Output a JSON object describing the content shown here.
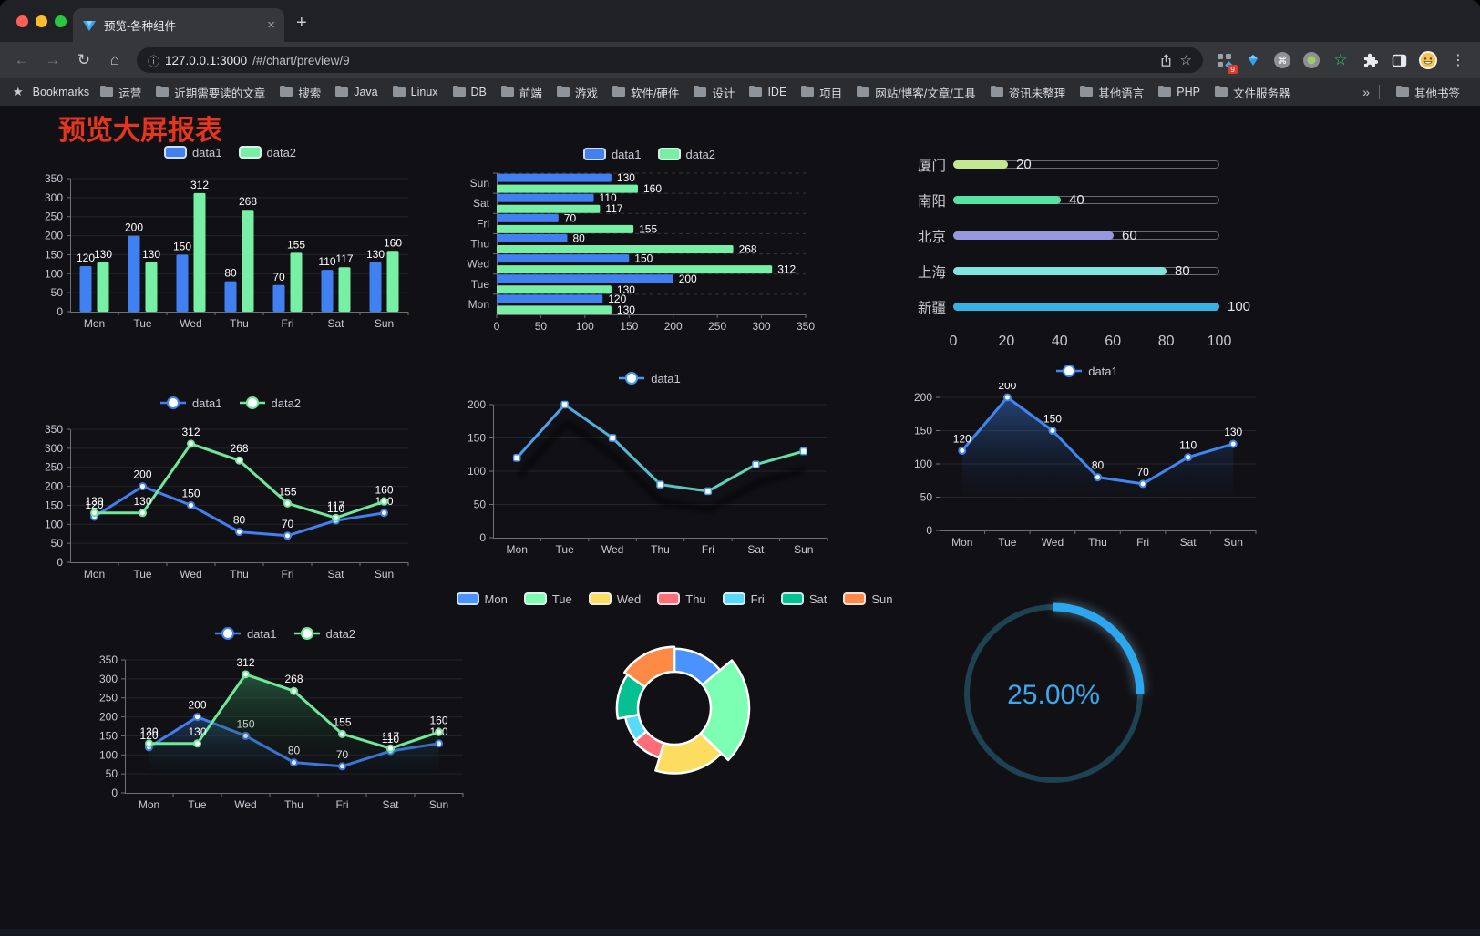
{
  "browser": {
    "tab": {
      "title": "预览-各种组件"
    },
    "address": {
      "url_host": "127.0.0.1:3000",
      "url_path": "/#/chart/preview/9",
      "badge_count": "9"
    },
    "toolbar_icons": [
      "back",
      "forward",
      "reload",
      "home",
      "info",
      "share",
      "bookmark-star",
      "extension-grid",
      "vue-devtools-gem",
      "command-circle",
      "proxy-circle",
      "green-star",
      "extensions-puzzle",
      "sidebar",
      "profile-avatar",
      "menu"
    ],
    "bookmarks": {
      "label": "Bookmarks",
      "folders": [
        "运营",
        "近期需要读的文章",
        "搜索",
        "Java",
        "Linux",
        "DB",
        "前端",
        "游戏",
        "软件/硬件",
        "设计",
        "IDE",
        "项目",
        "网站/博客/文章/工具",
        "资讯未整理",
        "其他语言",
        "PHP",
        "文件服务器"
      ],
      "other_label": "其他书签"
    }
  },
  "icons": {
    "back": "←",
    "forward": "→",
    "reload": "↻",
    "home": "⌂",
    "info": "ⓘ",
    "star": "☆",
    "green_star": "☆",
    "menu": "⋮",
    "overflow": "»",
    "close": "×",
    "plus": "+",
    "cmd": "⌘",
    "bookmarks_star": "★"
  },
  "page": {
    "title": "预览大屏报表",
    "title_color": "#e7351d"
  },
  "chart_data": [
    {
      "id": "barV",
      "type": "bar",
      "legend_pos": "top",
      "categories": [
        "Mon",
        "Tue",
        "Wed",
        "Thu",
        "Fri",
        "Sat",
        "Sun"
      ],
      "series": [
        {
          "name": "data1",
          "color": "#4180f0",
          "values": [
            120,
            200,
            150,
            80,
            70,
            110,
            130
          ]
        },
        {
          "name": "data2",
          "color": "#77f0a6",
          "values": [
            130,
            130,
            312,
            268,
            155,
            117,
            160
          ]
        }
      ],
      "ylim": [
        0,
        350
      ],
      "ytick": 50,
      "value_labels": true,
      "grid": true
    },
    {
      "id": "barH",
      "type": "bar-h",
      "legend_pos": "top",
      "categories": [
        "Mon",
        "Tue",
        "Wed",
        "Thu",
        "Fri",
        "Sat",
        "Sun"
      ],
      "series": [
        {
          "name": "data1",
          "color": "#4180f0",
          "values": [
            120,
            200,
            150,
            80,
            70,
            110,
            130
          ]
        },
        {
          "name": "data2",
          "color": "#77f0a6",
          "values": [
            130,
            130,
            312,
            268,
            155,
            117,
            160
          ]
        }
      ],
      "xlim": [
        0,
        350
      ],
      "xtick": 50,
      "value_labels": true
    },
    {
      "id": "progress",
      "type": "progress",
      "rows": [
        {
          "label": "厦门",
          "value": 20,
          "color": "#c3e88d"
        },
        {
          "label": "南阳",
          "value": 40,
          "color": "#56e2a3"
        },
        {
          "label": "北京",
          "value": 60,
          "color": "#9598de"
        },
        {
          "label": "上海",
          "value": 80,
          "color": "#82e4e0"
        },
        {
          "label": "新疆",
          "value": 100,
          "color": "#38b2e3"
        }
      ],
      "xlim": [
        0,
        100
      ],
      "xticks": [
        0,
        20,
        40,
        60,
        80,
        100
      ]
    },
    {
      "id": "lineDouble",
      "type": "line",
      "legend_pos": "top",
      "categories": [
        "Mon",
        "Tue",
        "Wed",
        "Thu",
        "Fri",
        "Sat",
        "Sun"
      ],
      "series": [
        {
          "name": "data1",
          "color": "#4180f0",
          "values": [
            120,
            200,
            150,
            80,
            70,
            110,
            130
          ]
        },
        {
          "name": "data2",
          "color": "#6fe89a",
          "values": [
            130,
            130,
            312,
            268,
            155,
            117,
            160
          ]
        }
      ],
      "ylim": [
        0,
        350
      ],
      "ytick": 50,
      "value_labels": true,
      "marker": "circle"
    },
    {
      "id": "lineGradient",
      "type": "line",
      "legend_pos": "top",
      "categories": [
        "Mon",
        "Tue",
        "Wed",
        "Thu",
        "Fri",
        "Sat",
        "Sun"
      ],
      "series": [
        {
          "name": "data1",
          "color": "#4a9af0",
          "values": [
            120,
            200,
            150,
            80,
            70,
            110,
            130
          ]
        }
      ],
      "gradient": [
        "#4a9af0",
        "#66e6a2"
      ],
      "shadow": true,
      "ylim": [
        0,
        200
      ],
      "ytick": 50,
      "value_labels": false,
      "marker": "rect"
    },
    {
      "id": "areaSingle",
      "type": "line",
      "legend_pos": "top",
      "area": true,
      "categories": [
        "Mon",
        "Tue",
        "Wed",
        "Thu",
        "Fri",
        "Sat",
        "Sun"
      ],
      "series": [
        {
          "name": "data1",
          "color": "#3f86f0",
          "fill": "rgba(62,134,240,0.45)",
          "values": [
            120,
            200,
            150,
            80,
            70,
            110,
            130
          ]
        }
      ],
      "ylim": [
        0,
        200
      ],
      "ytick": 50,
      "value_labels": true,
      "marker": "circle"
    },
    {
      "id": "areaDouble",
      "type": "line",
      "legend_pos": "top",
      "area": true,
      "categories": [
        "Mon",
        "Tue",
        "Wed",
        "Thu",
        "Fri",
        "Sat",
        "Sun"
      ],
      "series": [
        {
          "name": "data1",
          "color": "#4180f0",
          "fill": "rgba(50,100,170,0.45)",
          "values": [
            120,
            200,
            150,
            80,
            70,
            110,
            130
          ]
        },
        {
          "name": "data2",
          "color": "#6fe89a",
          "fill": "rgba(55,150,95,0.50)",
          "values": [
            130,
            130,
            312,
            268,
            155,
            117,
            160
          ]
        }
      ],
      "ylim": [
        0,
        350
      ],
      "ytick": 50,
      "value_labels": true,
      "marker": "circle"
    },
    {
      "id": "donut",
      "type": "pie",
      "rose": true,
      "legend_pos": "top",
      "categories": [
        "Mon",
        "Tue",
        "Wed",
        "Thu",
        "Fri",
        "Sat",
        "Sun"
      ],
      "values": [
        120,
        200,
        150,
        80,
        70,
        110,
        130
      ],
      "colors": [
        "#4992ff",
        "#7cffb2",
        "#fddd60",
        "#ff6e76",
        "#58d9f9",
        "#05c091",
        "#ff8a45"
      ]
    },
    {
      "id": "gauge",
      "type": "gauge",
      "value": 25,
      "label": "25.00%",
      "color": "#2aa7ee",
      "track": "#1d4352",
      "text_color": "#3aa9ef"
    }
  ]
}
